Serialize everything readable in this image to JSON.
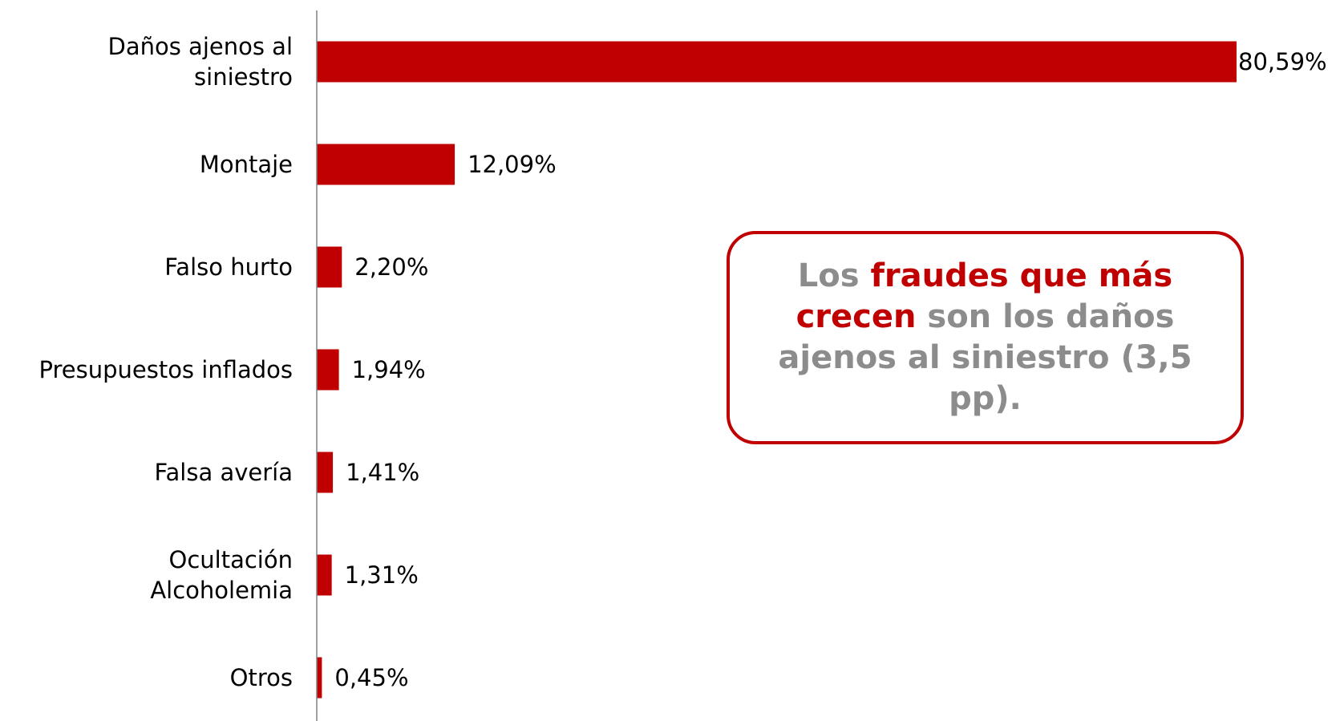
{
  "chart_data": {
    "type": "bar",
    "orientation": "horizontal",
    "categories": [
      "Daños ajenos al\nsiniestro",
      "Montaje",
      "Falso hurto",
      "Presupuestos inflados",
      "Falsa avería",
      "Ocultación \nAlcoholemia",
      "Otros"
    ],
    "values": [
      80.59,
      12.09,
      2.2,
      1.94,
      1.41,
      1.31,
      0.45
    ],
    "value_labels": [
      "80,59%",
      "12,09%",
      "2,20%",
      "1,94%",
      "1,41%",
      "1,31%",
      "0,45%"
    ],
    "color": "#c00000",
    "annotation": {
      "parts": [
        {
          "text": "Los ",
          "color": "#8c8c8c"
        },
        {
          "text": "fraudes que más crecen",
          "color": "#c00000"
        },
        {
          "text": " son los daños ajenos al siniestro (3,5 pp).",
          "color": "#8c8c8c"
        }
      ]
    }
  }
}
